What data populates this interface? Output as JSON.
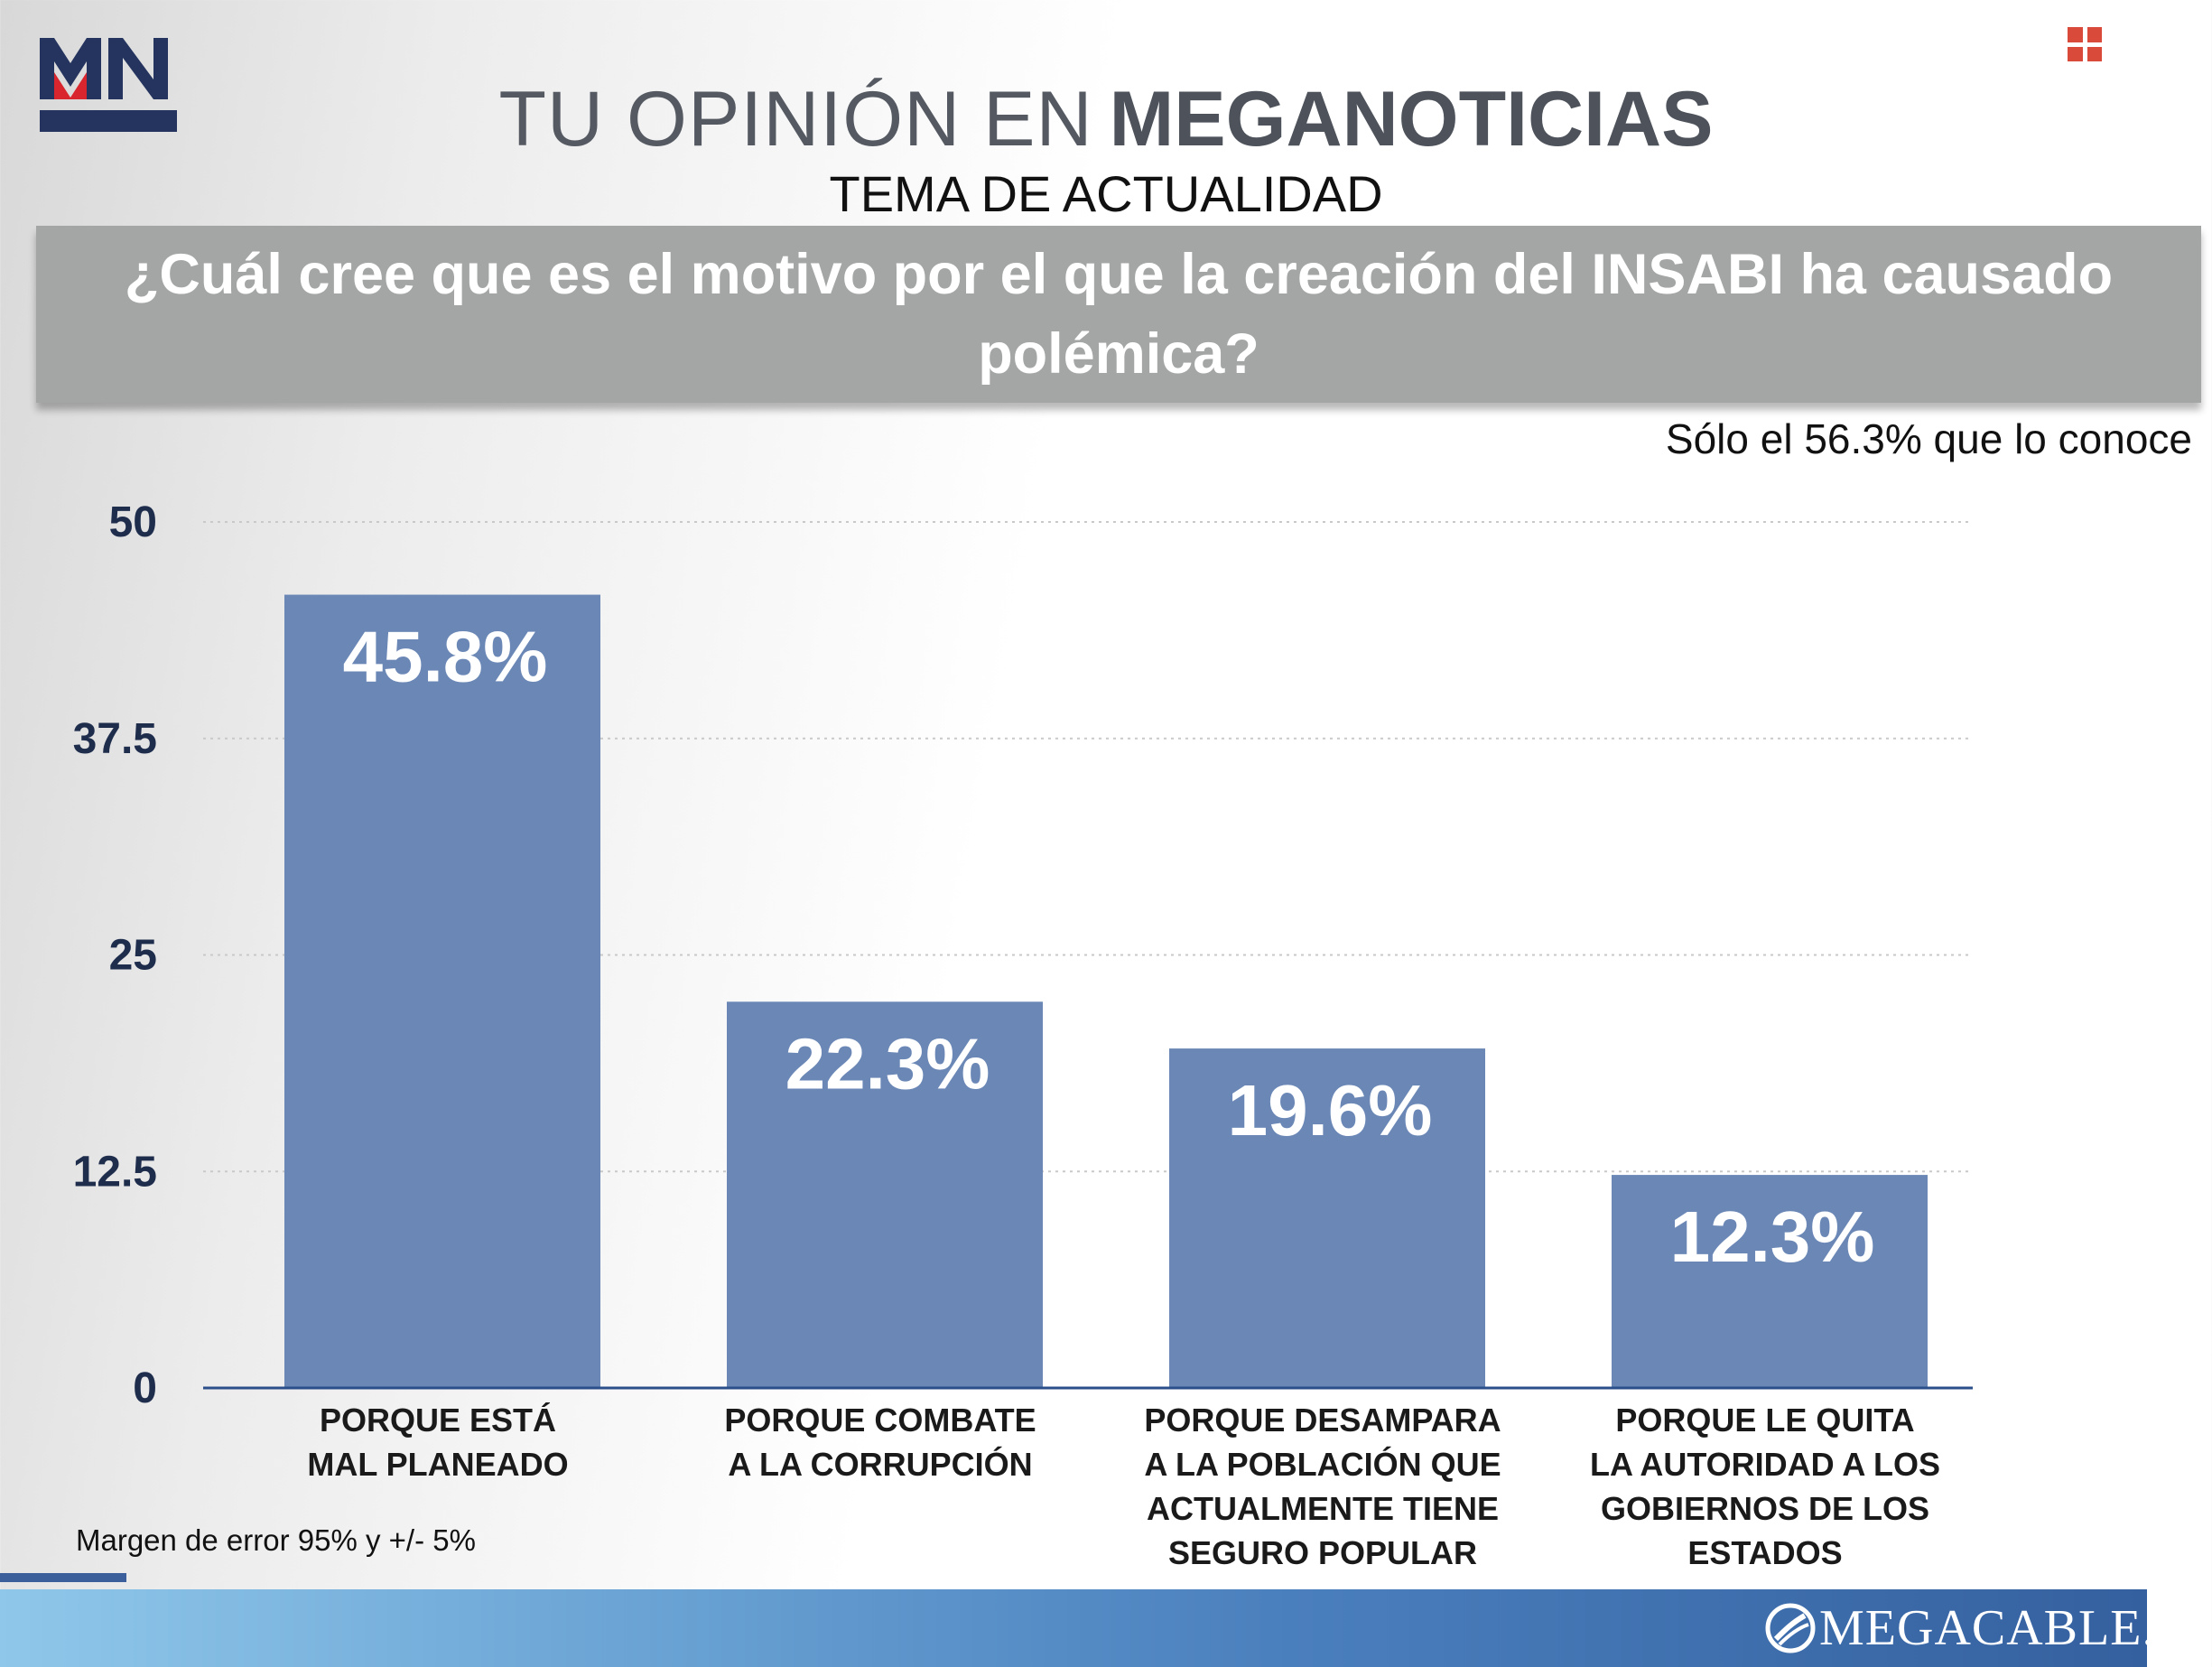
{
  "header": {
    "logo_text": "MN",
    "title_light": "TU OPINIÓN EN",
    "title_bold": "MEGANOTICIAS",
    "subtitle": "TEMA DE ACTUALIDAD"
  },
  "question": "¿Cuál cree que es el motivo por el que la creación del INSABI ha causado polémica?",
  "note": "Sólo el 56.3% que lo conoce",
  "footer": {
    "error_note": "Margen de error 95% y +/- 5%",
    "brand": "MEGACABLE."
  },
  "colors": {
    "bar": "#6a87b6",
    "axis": "#2b4f8a",
    "tick_text": "#1f2d4d",
    "category_text": "#1a1a1a",
    "title_gray": "#555a62",
    "banner": "#a4a6a5",
    "logo_red": "#d9262e",
    "logo_navy": "#24345f"
  },
  "chart_data": {
    "type": "bar",
    "categories": [
      [
        "PORQUE ESTÁ",
        "MAL PLANEADO"
      ],
      [
        "PORQUE COMBATE",
        "A LA CORRUPCIÓN"
      ],
      [
        "PORQUE DESAMPARA",
        "A LA POBLACIÓN QUE",
        "ACTUALMENTE TIENE",
        "SEGURO POPULAR"
      ],
      [
        "PORQUE LE QUITA",
        "LA AUTORIDAD A LOS",
        "GOBIERNOS DE LOS",
        "ESTADOS"
      ]
    ],
    "values": [
      45.8,
      22.3,
      19.6,
      12.3
    ],
    "data_labels": [
      "45.8%",
      "22.3%",
      "19.6%",
      "12.3%"
    ],
    "y_ticks": [
      0,
      12.5,
      25,
      37.5,
      50
    ],
    "y_tick_labels": [
      "0",
      "12.5",
      "25",
      "37.5",
      "50"
    ],
    "ylim": [
      0,
      50
    ],
    "grid": true,
    "legend": "none"
  }
}
